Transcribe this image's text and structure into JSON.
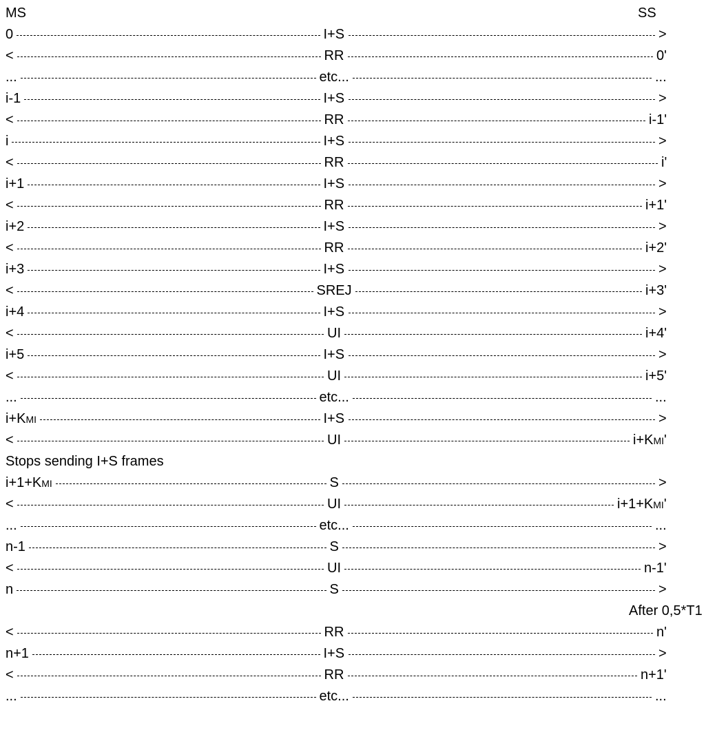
{
  "header": {
    "left": "MS",
    "right": "SS"
  },
  "rows": [
    {
      "type": "frame",
      "left": "0",
      "label": "I+S",
      "right": ">"
    },
    {
      "type": "frame",
      "left": "<",
      "label": "RR",
      "right": "0'"
    },
    {
      "type": "frame",
      "left": "...",
      "label": "etc...",
      "right": "..."
    },
    {
      "type": "frame",
      "left": "i-1",
      "label": "I+S",
      "right": ">"
    },
    {
      "type": "frame",
      "left": "<",
      "label": "RR",
      "right": "i-1'"
    },
    {
      "type": "frame",
      "left": "i",
      "label": "I+S",
      "right": ">"
    },
    {
      "type": "frame",
      "left": "<",
      "label": "RR",
      "right": "i'"
    },
    {
      "type": "frame",
      "left": "i+1",
      "label": "I+S",
      "right": ">"
    },
    {
      "type": "frame",
      "left": "<",
      "label": "RR",
      "right": "i+1'"
    },
    {
      "type": "frame",
      "left": "i+2",
      "label": "I+S",
      "right": ">"
    },
    {
      "type": "frame",
      "left": "<",
      "label": "RR",
      "right": "i+2'"
    },
    {
      "type": "frame",
      "left": "i+3",
      "label": "I+S",
      "right": ">"
    },
    {
      "type": "frame",
      "left": "<",
      "label": "SREJ",
      "right": "i+3'"
    },
    {
      "type": "frame",
      "left": "i+4",
      "label": "I+S",
      "right": ">"
    },
    {
      "type": "frame",
      "left": "<",
      "label": "UI",
      "right": "i+4'"
    },
    {
      "type": "frame",
      "left": "i+5",
      "label": "I+S",
      "right": ">"
    },
    {
      "type": "frame",
      "left": "<",
      "label": "UI",
      "right": "i+5'"
    },
    {
      "type": "frame",
      "left": "...",
      "label": "etc...",
      "right": "..."
    },
    {
      "type": "frame",
      "left": "i+K",
      "left_sub": "MI",
      "label": "I+S",
      "right": ">"
    },
    {
      "type": "frame",
      "left": "<",
      "label": "UI",
      "right": "i+K",
      "right_sub": "MI",
      "right_suffix": "'"
    },
    {
      "type": "note",
      "text": "Stops sending I+S frames",
      "align": "left"
    },
    {
      "type": "frame",
      "left": "i+1+K",
      "left_sub": "MI",
      "label": "S",
      "right": ">"
    },
    {
      "type": "frame",
      "left": "<",
      "label": "UI",
      "right": "i+1+K",
      "right_sub": "MI",
      "right_suffix": "'"
    },
    {
      "type": "frame",
      "left": "...",
      "label": "etc...",
      "right": "..."
    },
    {
      "type": "frame",
      "left": "n-1",
      "label": "S",
      "right": ">"
    },
    {
      "type": "frame",
      "left": "<",
      "label": "UI",
      "right": "n-1'"
    },
    {
      "type": "frame",
      "left": "n",
      "label": "S",
      "right": ">"
    },
    {
      "type": "note",
      "text": "After 0,5*T1",
      "align": "right"
    },
    {
      "type": "frame",
      "left": "<",
      "label": "RR",
      "right": "n'"
    },
    {
      "type": "frame",
      "left": "n+1",
      "label": "I+S",
      "right": ">"
    },
    {
      "type": "frame",
      "left": "<",
      "label": "RR",
      "right": "n+1'"
    },
    {
      "type": "frame",
      "left": "...",
      "label": "etc...",
      "right": "..."
    }
  ]
}
